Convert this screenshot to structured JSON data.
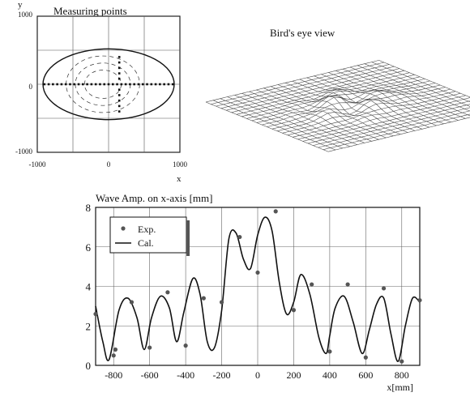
{
  "chart_data": [
    {
      "type": "scatter",
      "title": "Measuring points",
      "xlabel": "x",
      "ylabel": "y",
      "xticks": [
        "-1000",
        "0",
        "1000"
      ],
      "yticks": [
        "1000",
        "0",
        "-1000"
      ],
      "xlim": [
        -1000,
        1000
      ],
      "ylim": [
        -1000,
        1000
      ],
      "grid": true,
      "ellipse": {
        "semi_x": 920,
        "semi_y": 520
      },
      "points": [
        {
          "x": -900,
          "y": 0
        },
        {
          "x": -840,
          "y": 0
        },
        {
          "x": -780,
          "y": 0
        },
        {
          "x": -720,
          "y": 0
        },
        {
          "x": -660,
          "y": 0
        },
        {
          "x": -600,
          "y": 0
        },
        {
          "x": -540,
          "y": 0
        },
        {
          "x": -480,
          "y": 0
        },
        {
          "x": -420,
          "y": 0
        },
        {
          "x": -360,
          "y": 0
        },
        {
          "x": -300,
          "y": 0
        },
        {
          "x": -240,
          "y": 0
        },
        {
          "x": -180,
          "y": 0
        },
        {
          "x": -120,
          "y": 0
        },
        {
          "x": -60,
          "y": 0
        },
        {
          "x": 0,
          "y": 0
        },
        {
          "x": 60,
          "y": 0
        },
        {
          "x": 120,
          "y": 0
        },
        {
          "x": 180,
          "y": 0
        },
        {
          "x": 240,
          "y": 0
        },
        {
          "x": 300,
          "y": 0
        },
        {
          "x": 360,
          "y": 0
        },
        {
          "x": 420,
          "y": 0
        },
        {
          "x": 480,
          "y": 0
        },
        {
          "x": 540,
          "y": 0
        },
        {
          "x": 600,
          "y": 0
        },
        {
          "x": 660,
          "y": 0
        },
        {
          "x": 720,
          "y": 0
        },
        {
          "x": 780,
          "y": 0
        },
        {
          "x": 840,
          "y": 0
        },
        {
          "x": 900,
          "y": 0
        },
        {
          "x": 150,
          "y": 400
        },
        {
          "x": 150,
          "y": 320
        },
        {
          "x": 150,
          "y": 240
        },
        {
          "x": 150,
          "y": 160
        },
        {
          "x": 150,
          "y": 80
        },
        {
          "x": 150,
          "y": -80
        },
        {
          "x": 150,
          "y": -160
        },
        {
          "x": 150,
          "y": -240
        },
        {
          "x": 150,
          "y": -320
        },
        {
          "x": 150,
          "y": -400
        }
      ]
    },
    {
      "type": "surface",
      "title": "Bird's eye view"
    },
    {
      "type": "line",
      "title": "Wave Amp. on x-axis [mm]",
      "xlabel": "x[mm]",
      "ylabel": "",
      "xlim": [
        -900,
        900
      ],
      "ylim": [
        0,
        8
      ],
      "xticks": [
        "-800",
        "-600",
        "-400",
        "-200",
        "0",
        "200",
        "400",
        "600",
        "800"
      ],
      "yticks": [
        "0",
        "2",
        "4",
        "6",
        "8"
      ],
      "grid": true,
      "legend": {
        "placement": "top-left",
        "exp_label": "Exp.",
        "cal_label": "Cal."
      },
      "series": [
        {
          "name": "Exp.",
          "kind": "markers",
          "x": [
            -900,
            -800,
            -790,
            -700,
            -600,
            -500,
            -400,
            -300,
            -200,
            -100,
            0,
            100,
            200,
            300,
            400,
            500,
            600,
            700,
            800,
            900
          ],
          "y": [
            2.6,
            0.5,
            0.8,
            3.2,
            0.9,
            3.7,
            1.0,
            3.4,
            3.2,
            6.5,
            4.7,
            7.8,
            2.8,
            4.1,
            0.7,
            4.1,
            0.4,
            3.9,
            0.2,
            3.3
          ]
        },
        {
          "name": "Cal.",
          "kind": "line",
          "x": [
            -900,
            -860,
            -825,
            -770,
            -720,
            -670,
            -630,
            -590,
            -540,
            -490,
            -450,
            -410,
            -360,
            -320,
            -280,
            -240,
            -200,
            -160,
            -120,
            -80,
            -40,
            0,
            40,
            80,
            120,
            160,
            200,
            240,
            290,
            340,
            380,
            400,
            430,
            480,
            530,
            580,
            620,
            660,
            700,
            740,
            780,
            820,
            860,
            900
          ],
          "y": [
            3.0,
            1.2,
            0.3,
            2.8,
            3.4,
            2.4,
            0.8,
            2.4,
            3.5,
            2.9,
            1.2,
            2.7,
            4.4,
            3.6,
            1.2,
            0.9,
            2.8,
            6.4,
            6.7,
            5.4,
            4.9,
            6.6,
            7.5,
            6.8,
            4.2,
            2.6,
            3.2,
            4.6,
            3.6,
            1.4,
            0.6,
            1.5,
            2.9,
            3.5,
            2.2,
            0.6,
            1.8,
            3.1,
            3.4,
            1.6,
            0.2,
            2.0,
            3.4,
            3.2
          ]
        }
      ]
    }
  ]
}
